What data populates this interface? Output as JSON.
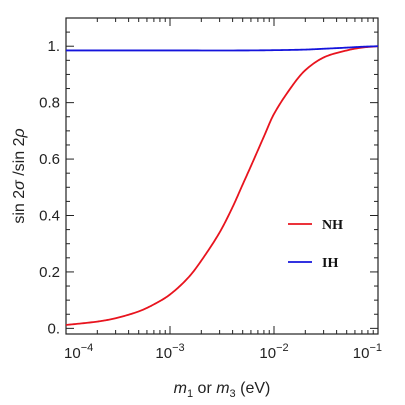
{
  "chart_data": {
    "type": "line",
    "xscale": "log",
    "xlim": [
      0.0001,
      0.1
    ],
    "ylim": [
      -0.02,
      1.1
    ],
    "xlabel": {
      "m": "m",
      "sub1": "1",
      "or": " or ",
      "sub3": "3",
      "unit": " (eV)"
    },
    "ylabel": {
      "pre": "sin 2",
      "sigma": "σ",
      "mid": " /sin 2",
      "rho": "ρ"
    },
    "xticks": [
      {
        "value": 0.0001,
        "base": "10",
        "exp": "−4"
      },
      {
        "value": 0.001,
        "base": "10",
        "exp": "−3"
      },
      {
        "value": 0.01,
        "base": "10",
        "exp": "−2"
      },
      {
        "value": 0.1,
        "base": "10",
        "exp": "−1"
      }
    ],
    "yticks": [
      {
        "value": 0,
        "label": "0."
      },
      {
        "value": 0.2,
        "label": "0.2"
      },
      {
        "value": 0.4,
        "label": "0.4"
      },
      {
        "value": 0.6,
        "label": "0.6"
      },
      {
        "value": 0.8,
        "label": "0.8"
      },
      {
        "value": 1.0,
        "label": "1."
      }
    ],
    "grid": false,
    "legend_position": "right-middle",
    "series": [
      {
        "name": "NH",
        "color": "#e8141e",
        "x": [
          0.0001,
          0.0002,
          0.0003,
          0.0005,
          0.0007,
          0.001,
          0.0015,
          0.002,
          0.003,
          0.004,
          0.005,
          0.006,
          0.008,
          0.01,
          0.015,
          0.02,
          0.03,
          0.05,
          0.07,
          0.1
        ],
        "y": [
          0.012,
          0.024,
          0.036,
          0.06,
          0.085,
          0.12,
          0.18,
          0.24,
          0.34,
          0.43,
          0.51,
          0.575,
          0.68,
          0.76,
          0.86,
          0.915,
          0.96,
          0.985,
          0.995,
          1.0
        ]
      },
      {
        "name": "IH",
        "color": "#1414dc",
        "x": [
          0.0001,
          0.001,
          0.005,
          0.01,
          0.02,
          0.03,
          0.05,
          0.07,
          0.1
        ],
        "y": [
          0.985,
          0.985,
          0.985,
          0.986,
          0.988,
          0.991,
          0.995,
          0.998,
          1.0
        ]
      }
    ]
  }
}
